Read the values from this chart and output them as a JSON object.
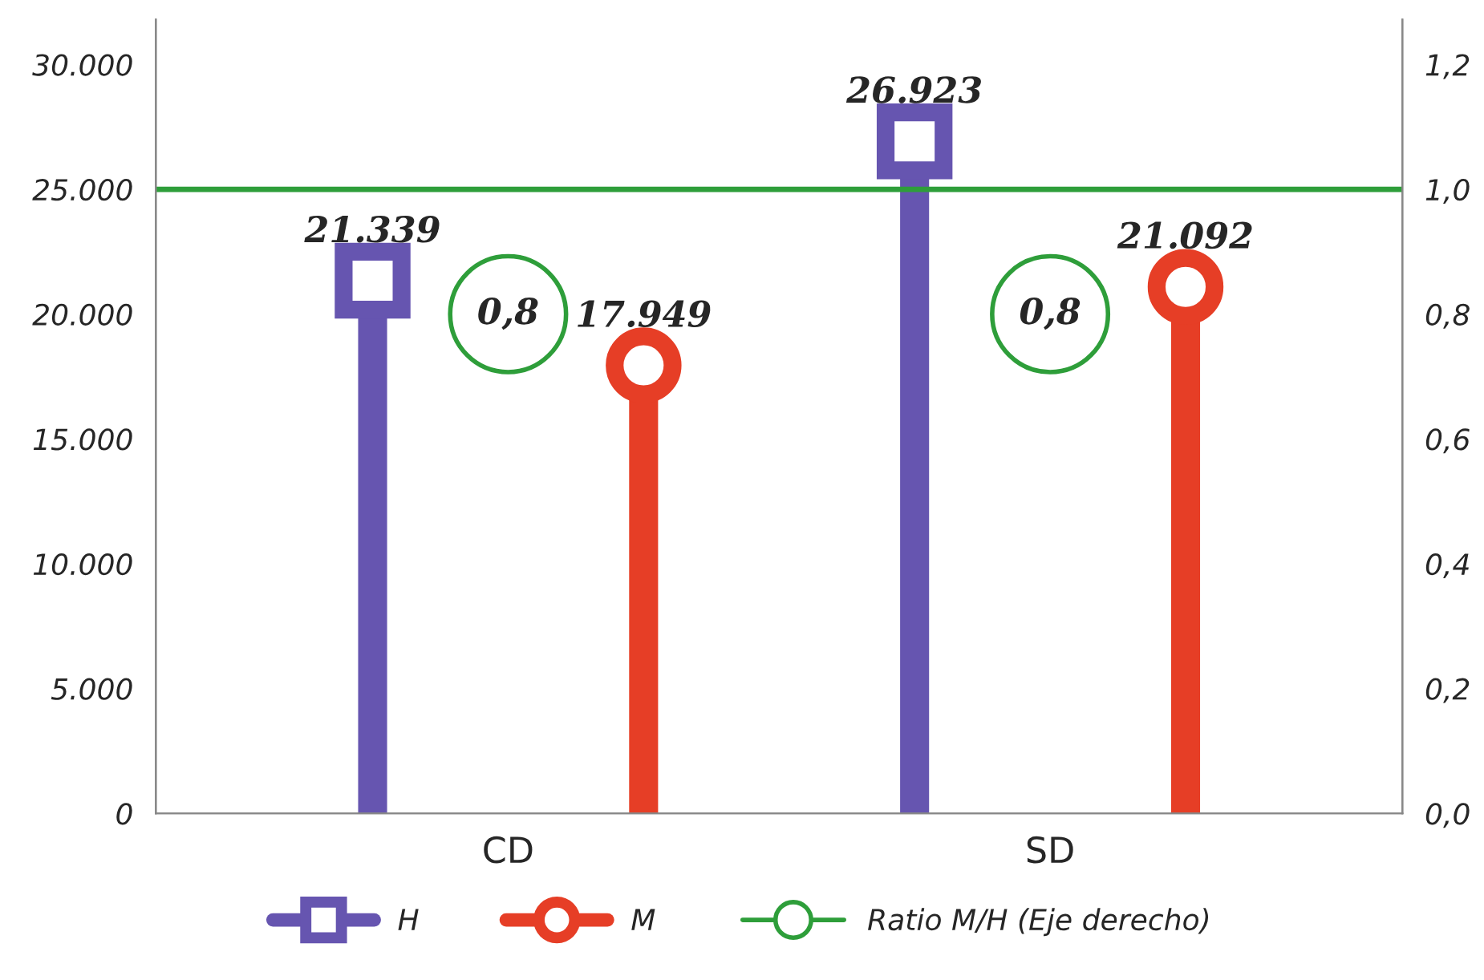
{
  "chart_data": {
    "type": "lollipop",
    "categories": [
      "CD",
      "SD"
    ],
    "series": [
      {
        "name": "H",
        "color": "#6655b0",
        "values": [
          21339,
          26923
        ],
        "marker": "square",
        "value_labels": [
          "21.339",
          "26.923"
        ]
      },
      {
        "name": "M",
        "color": "#e63e26",
        "values": [
          17949,
          21092
        ],
        "marker": "circle",
        "value_labels": [
          "17.949",
          "21.092"
        ]
      },
      {
        "name": "Ratio M/H (Eje derecho)",
        "type": "scatter",
        "axis": "y2",
        "color": "#2e9e3a",
        "values": [
          0.8,
          0.8
        ],
        "marker": "circle",
        "value_labels": [
          "0,8",
          "0,8"
        ]
      }
    ],
    "ylim": [
      0,
      31800
    ],
    "yticks": [
      {
        "value": 0,
        "label": "0"
      },
      {
        "value": 5000,
        "label": "5.000"
      },
      {
        "value": 10000,
        "label": "10.000"
      },
      {
        "value": 15000,
        "label": "15.000"
      },
      {
        "value": 20000,
        "label": "20.000"
      },
      {
        "value": 25000,
        "label": "25.000"
      },
      {
        "value": 30000,
        "label": "30.000"
      }
    ],
    "y2lim": [
      0,
      1.272
    ],
    "y2ticks": [
      {
        "value": 0,
        "label": "0,0"
      },
      {
        "value": 0.2,
        "label": "0,2"
      },
      {
        "value": 0.4,
        "label": "0,4"
      },
      {
        "value": 0.6,
        "label": "0,6"
      },
      {
        "value": 0.8,
        "label": "0,8"
      },
      {
        "value": 1.0,
        "label": "1,0"
      },
      {
        "value": 1.2,
        "label": "1,2"
      }
    ],
    "ref_lines": [
      {
        "axis": "y2",
        "value": 1.0,
        "color": "#2e9e3a"
      }
    ],
    "grid": false,
    "legend": "bottom"
  }
}
